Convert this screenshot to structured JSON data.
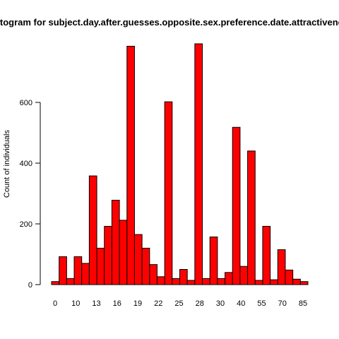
{
  "chart_data": {
    "type": "bar",
    "title": "Histogram for subject.day.after.guesses.opposite.sex.preference.date.attractiveness",
    "xlabel": "",
    "ylabel": "Count of individuals",
    "ylim": [
      0,
      800
    ],
    "yticks": [
      0,
      200,
      400,
      600
    ],
    "x_tick_labels": [
      "0",
      "10",
      "13",
      "16",
      "19",
      "22",
      "25",
      "28",
      "30",
      "40",
      "55",
      "70",
      "85"
    ],
    "bar_color": "#ff0000",
    "bar_edge_color": "#000000",
    "values": [
      10,
      92,
      20,
      92,
      70,
      358,
      120,
      192,
      278,
      212,
      785,
      165,
      120,
      66,
      26,
      602,
      20,
      50,
      14,
      793,
      20,
      157,
      20,
      40,
      518,
      60,
      440,
      14,
      192,
      16,
      115,
      48,
      18,
      10
    ]
  }
}
